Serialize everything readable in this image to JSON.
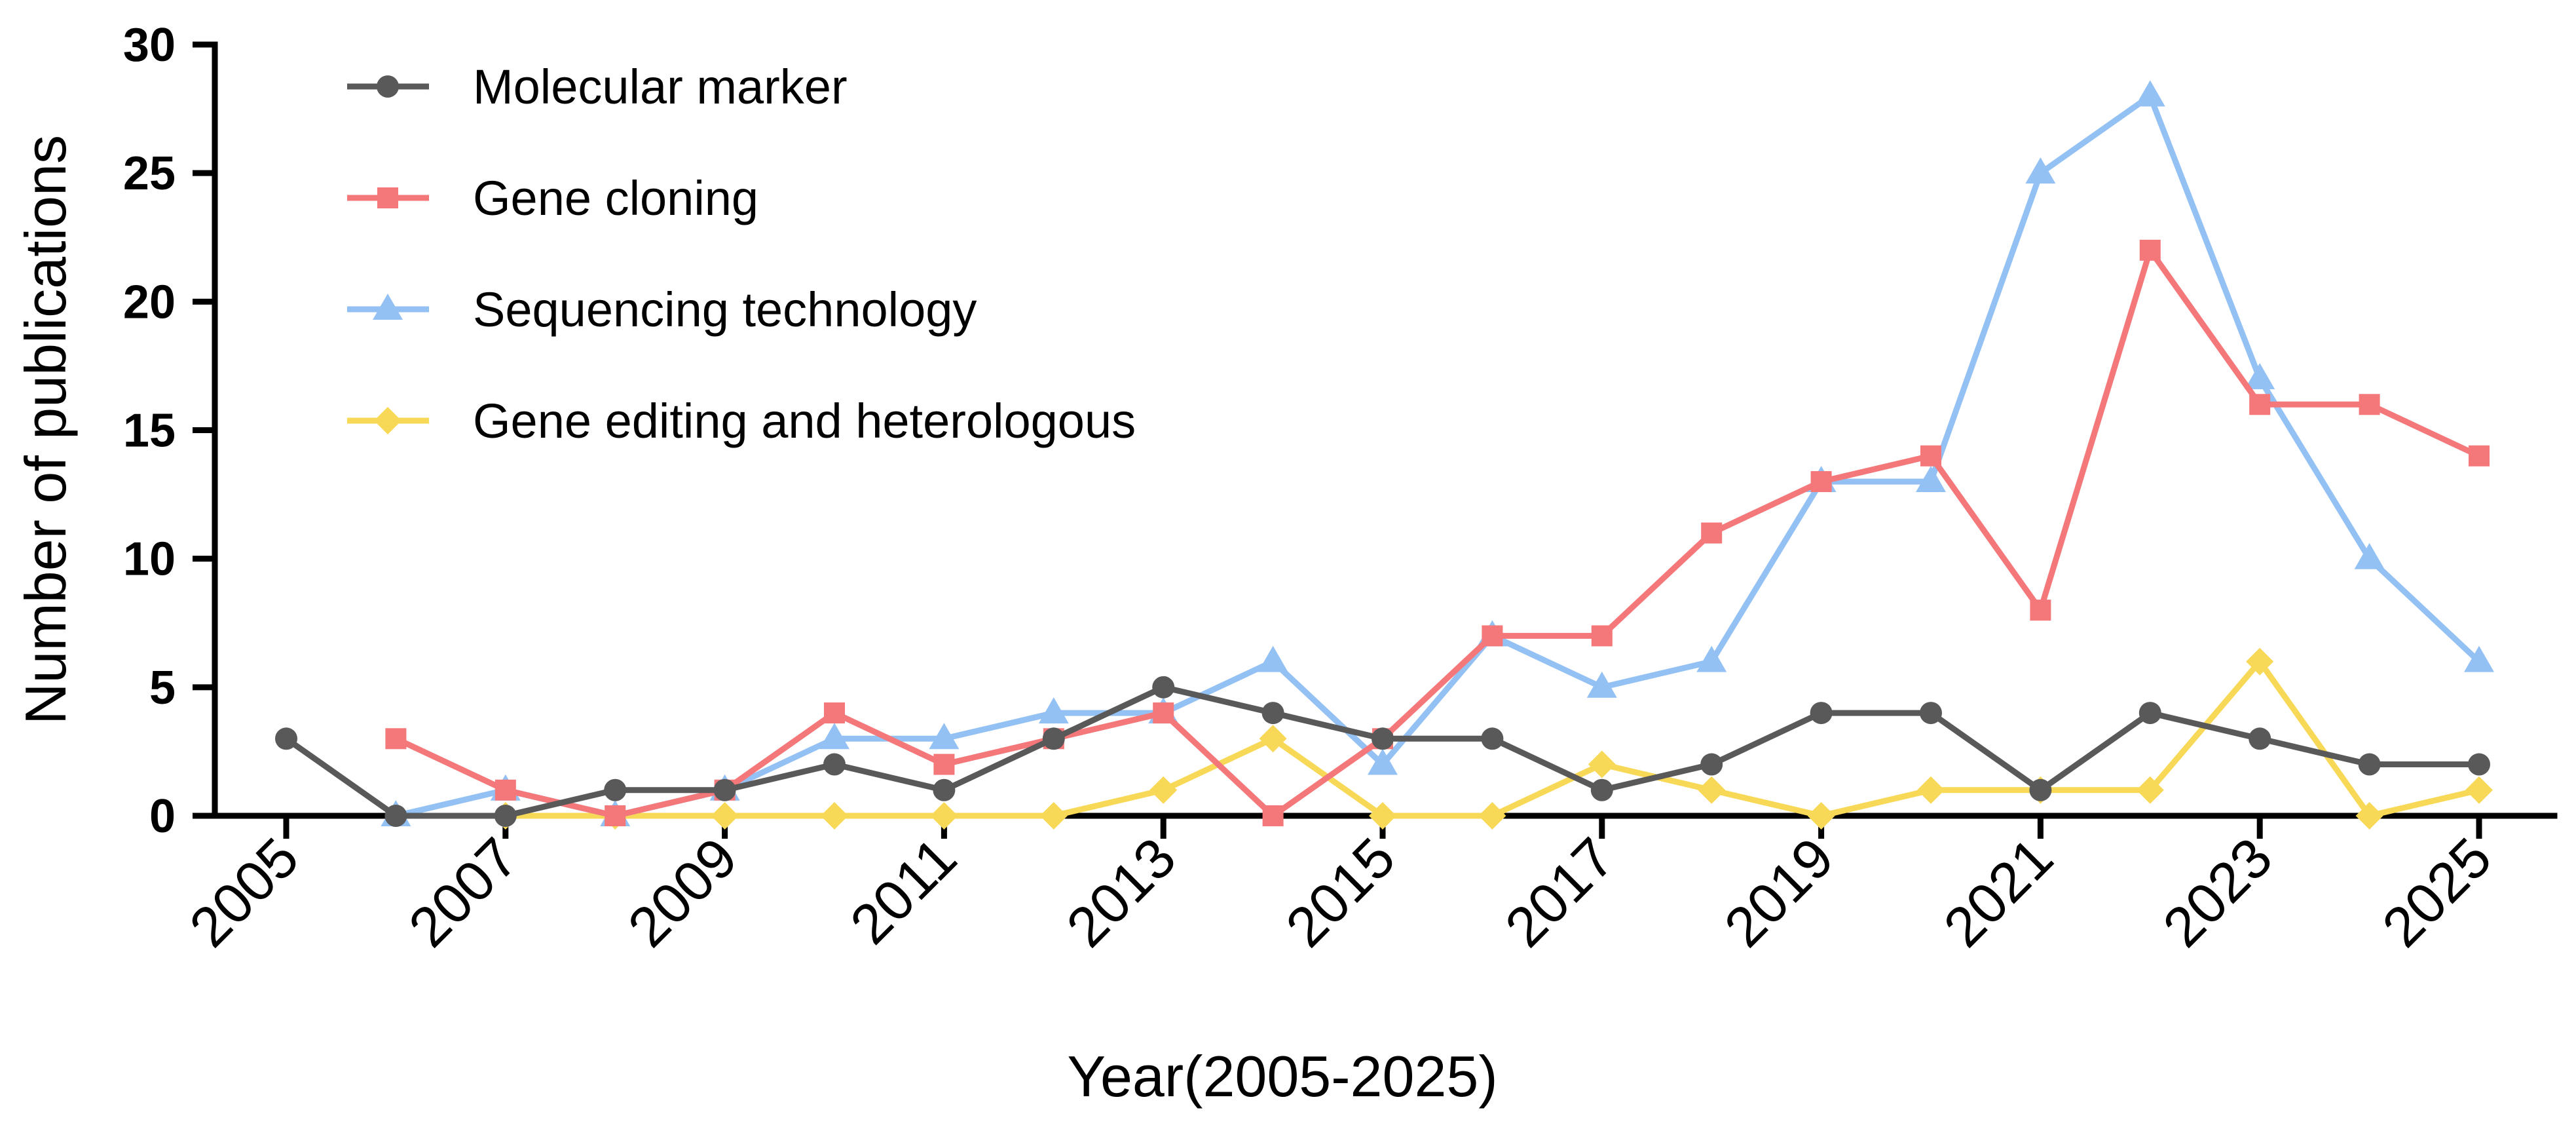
{
  "chart_data": {
    "type": "line",
    "title": "",
    "xlabel": "Year(2005-2025)",
    "ylabel": "Number of publications",
    "x": [
      2005,
      2006,
      2007,
      2008,
      2009,
      2010,
      2011,
      2012,
      2013,
      2014,
      2015,
      2016,
      2017,
      2018,
      2019,
      2020,
      2021,
      2022,
      2023,
      2024,
      2025
    ],
    "xticks": [
      "2005",
      "2007",
      "2009",
      "2011",
      "2013",
      "2015",
      "2017",
      "2019",
      "2021",
      "2023",
      "2025"
    ],
    "xlim": [
      2005,
      2025
    ],
    "ylim": [
      0,
      30
    ],
    "yticks": [
      0,
      5,
      10,
      15,
      20,
      25,
      30
    ],
    "grid": false,
    "legend_position": "top-left",
    "series": [
      {
        "name": "Molecular marker",
        "color": "#595959",
        "marker": "circle",
        "x": [
          2005,
          2006,
          2007,
          2008,
          2009,
          2010,
          2011,
          2012,
          2013,
          2014,
          2015,
          2016,
          2017,
          2018,
          2019,
          2020,
          2021,
          2022,
          2023,
          2024,
          2025
        ],
        "values": [
          3,
          0,
          0,
          1,
          1,
          2,
          1,
          3,
          5,
          4,
          3,
          3,
          1,
          2,
          4,
          4,
          1,
          4,
          3,
          2,
          2
        ]
      },
      {
        "name": "Gene cloning",
        "color": "#F4777A",
        "marker": "square",
        "x": [
          2006,
          2007,
          2008,
          2009,
          2010,
          2011,
          2012,
          2013,
          2014,
          2015,
          2016,
          2017,
          2018,
          2019,
          2020,
          2021,
          2022,
          2023,
          2024,
          2025
        ],
        "values": [
          3,
          1,
          0,
          1,
          4,
          2,
          3,
          4,
          0,
          3,
          7,
          7,
          11,
          13,
          14,
          8,
          22,
          16,
          16,
          14
        ]
      },
      {
        "name": "Sequencing technology",
        "color": "#94C1F4",
        "marker": "triangle",
        "x": [
          2006,
          2007,
          2008,
          2009,
          2010,
          2011,
          2012,
          2013,
          2014,
          2015,
          2016,
          2017,
          2018,
          2019,
          2020,
          2021,
          2022,
          2023,
          2024,
          2025
        ],
        "values": [
          0,
          1,
          0,
          1,
          3,
          3,
          4,
          4,
          6,
          2,
          7,
          5,
          6,
          13,
          13,
          25,
          28,
          17,
          10,
          6
        ]
      },
      {
        "name": "Gene editing and heterologous",
        "color": "#F8D957",
        "marker": "diamond",
        "x": [
          2007,
          2008,
          2009,
          2010,
          2011,
          2012,
          2013,
          2014,
          2015,
          2016,
          2017,
          2018,
          2019,
          2020,
          2021,
          2022,
          2023,
          2024,
          2025
        ],
        "values": [
          0,
          0,
          0,
          0,
          0,
          0,
          1,
          3,
          0,
          0,
          2,
          1,
          0,
          1,
          1,
          1,
          6,
          0,
          1
        ]
      }
    ]
  }
}
